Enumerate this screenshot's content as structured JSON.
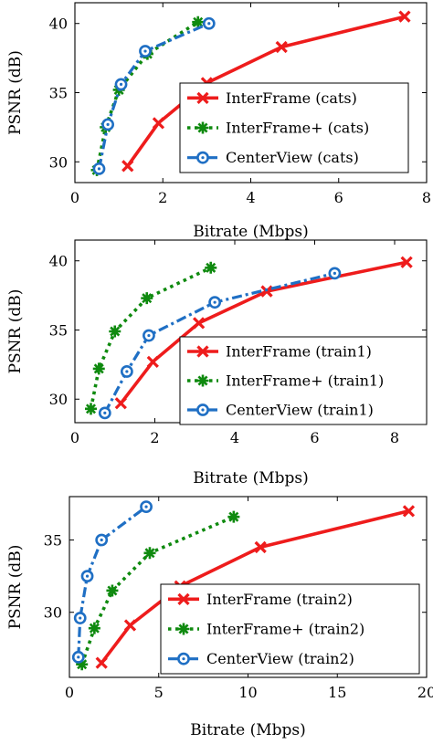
{
  "colors": {
    "interframe": "#ee1c1c",
    "interframe_plus": "#0f8a0f",
    "centerview": "#1f6fc4"
  },
  "chart_data": [
    {
      "type": "line",
      "xlabel": "Bitrate (Mbps)",
      "ylabel": "PSNR (dB)",
      "xlim": [
        0,
        8
      ],
      "ylim": [
        28.5,
        41.5
      ],
      "xticks": [
        0,
        2,
        4,
        6,
        8
      ],
      "yticks": [
        30,
        35,
        40
      ],
      "legend_position": "bottom-right",
      "series": [
        {
          "name": "InterFrame (cats)",
          "style": "interframe",
          "x": [
            1.2,
            1.9,
            3.0,
            4.7,
            7.5
          ],
          "y": [
            29.7,
            32.8,
            35.7,
            38.3,
            40.5
          ]
        },
        {
          "name": "InterFrame+ (cats)",
          "style": "interframe_plus",
          "x": [
            0.5,
            0.7,
            1.0,
            1.65,
            2.8
          ],
          "y": [
            29.4,
            32.5,
            35.2,
            37.8,
            40.1
          ]
        },
        {
          "name": "CenterView (cats)",
          "style": "centerview",
          "x": [
            0.55,
            0.75,
            1.05,
            1.6,
            3.05
          ],
          "y": [
            29.5,
            32.7,
            35.6,
            38.0,
            40.0
          ]
        }
      ]
    },
    {
      "type": "line",
      "xlabel": "Bitrate (Mbps)",
      "ylabel": "PSNR (dB)",
      "xlim": [
        0,
        8.8
      ],
      "ylim": [
        28.3,
        41.5
      ],
      "xticks": [
        0,
        2,
        4,
        6,
        8
      ],
      "yticks": [
        30,
        35,
        40
      ],
      "legend_position": "bottom-right",
      "series": [
        {
          "name": "InterFrame (train1)",
          "style": "interframe",
          "x": [
            1.15,
            1.95,
            3.1,
            4.8,
            8.3
          ],
          "y": [
            29.7,
            32.7,
            35.5,
            37.8,
            39.9
          ]
        },
        {
          "name": "InterFrame+ (train1)",
          "style": "interframe_plus",
          "x": [
            0.4,
            0.6,
            1.0,
            1.8,
            3.4
          ],
          "y": [
            29.3,
            32.2,
            34.9,
            37.3,
            39.5
          ]
        },
        {
          "name": "CenterView (train1)",
          "style": "centerview",
          "x": [
            0.75,
            1.3,
            1.85,
            3.5,
            6.5
          ],
          "y": [
            29.0,
            32.0,
            34.6,
            37.0,
            39.1
          ]
        }
      ]
    },
    {
      "type": "line",
      "xlabel": "Bitrate (Mbps)",
      "ylabel": "PSNR (dB)",
      "xlim": [
        0,
        20
      ],
      "ylim": [
        25.5,
        38
      ],
      "xticks": [
        0,
        5,
        10,
        15,
        20
      ],
      "yticks": [
        30,
        35
      ],
      "legend_position": "bottom-right",
      "series": [
        {
          "name": "InterFrame (train2)",
          "style": "interframe",
          "x": [
            1.8,
            3.4,
            6.2,
            10.7,
            19.0
          ],
          "y": [
            26.5,
            29.1,
            31.8,
            34.5,
            37.0
          ]
        },
        {
          "name": "InterFrame+ (train2)",
          "style": "interframe_plus",
          "x": [
            0.7,
            1.4,
            2.4,
            4.5,
            9.2
          ],
          "y": [
            26.4,
            28.9,
            31.5,
            34.1,
            36.6
          ]
        },
        {
          "name": "CenterView (train2)",
          "style": "centerview",
          "x": [
            0.5,
            0.6,
            1.0,
            1.8,
            4.3
          ],
          "y": [
            26.9,
            29.6,
            32.5,
            35.0,
            37.3
          ]
        }
      ]
    }
  ]
}
